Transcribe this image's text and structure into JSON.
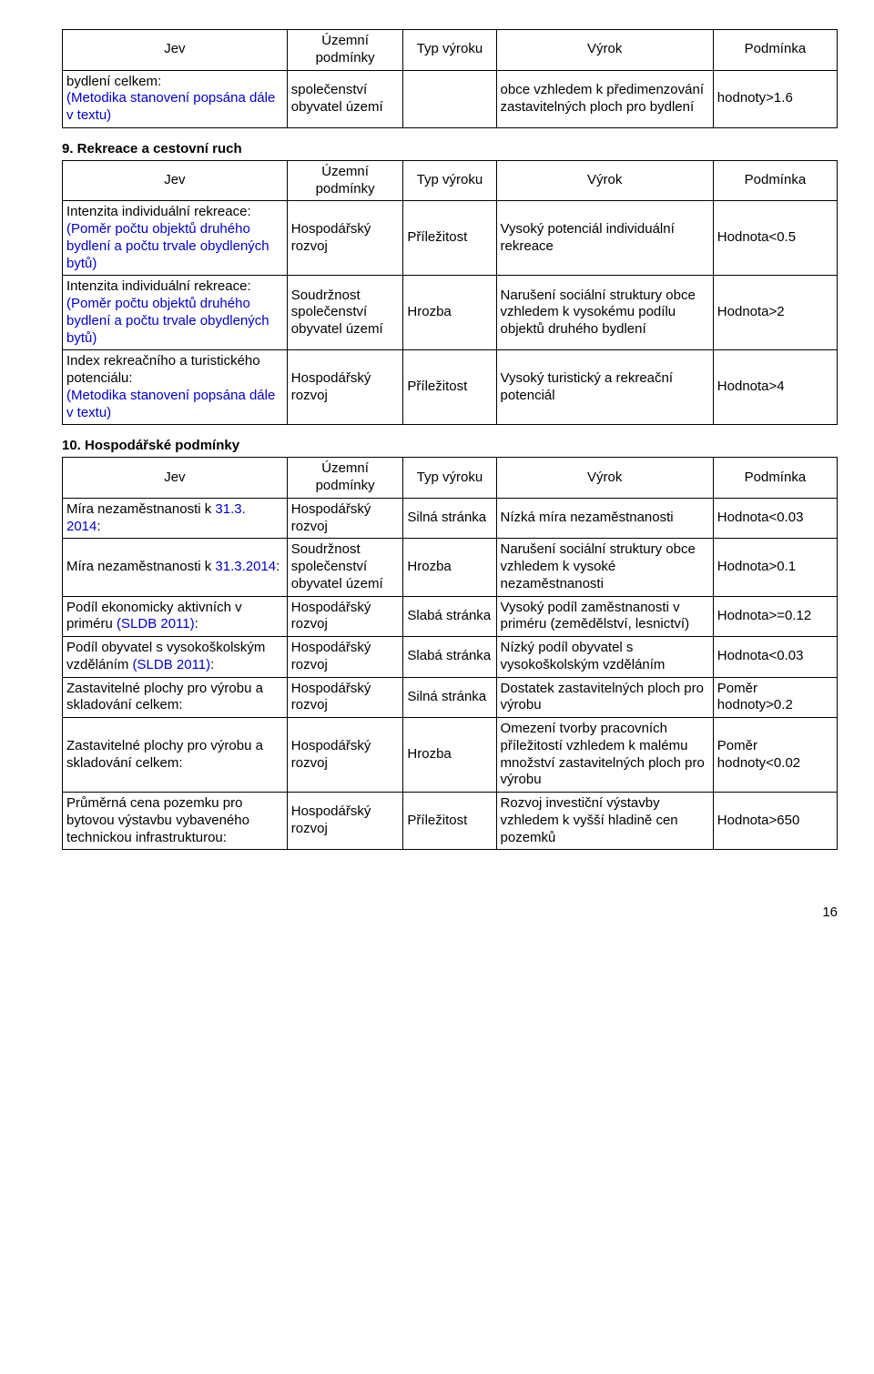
{
  "table1": {
    "headers": [
      "Jev",
      "Územní podmínky",
      "Typ výroku",
      "Výrok",
      "Podmínka"
    ],
    "rows": [
      {
        "jev_part1": "bydlení celkem:",
        "jev_part2": "(Metodika stanovení popsána dále v textu)",
        "uzp": "společenství obyvatel území",
        "typ": "",
        "vyrok": "obce vzhledem k předimenzování zastavitelných ploch pro bydlení",
        "pod": "hodnoty>1.6"
      }
    ]
  },
  "section9_title": "9. Rekreace a cestovní ruch",
  "table2": {
    "headers": [
      "Jev",
      "Územní podmínky",
      "Typ výroku",
      "Výrok",
      "Podmínka"
    ],
    "rows": [
      {
        "jev_a": "Intenzita individuální rekreace:",
        "jev_b": "(Poměr počtu objektů druhého bydlení a počtu trvale obydlených bytů)",
        "uzp": "Hospodářský rozvoj",
        "typ": "Příležitost",
        "vyrok": "Vysoký potenciál individuální rekreace",
        "pod": "Hodnota<0.5"
      },
      {
        "jev_a": "Intenzita individuální rekreace:",
        "jev_b": "(Poměr počtu objektů druhého bydlení a počtu trvale obydlených bytů)",
        "uzp": "Soudržnost společenství obyvatel území",
        "typ": "Hrozba",
        "vyrok": "Narušení sociální struktury obce vzhledem k vysokému podílu objektů druhého bydlení",
        "pod": "Hodnota>2"
      },
      {
        "jev_a": "Index rekreačního a turistického potenciálu:",
        "jev_b": "(Metodika stanovení popsána dále v textu)",
        "uzp": "Hospodářský rozvoj",
        "typ": "Příležitost",
        "vyrok": "Vysoký turistický a rekreační potenciál",
        "pod": "Hodnota>4"
      }
    ]
  },
  "section10_title": "10. Hospodářské podmínky",
  "table3": {
    "headers": [
      "Jev",
      "Územní podmínky",
      "Typ výroku",
      "Výrok",
      "Podmínka"
    ],
    "rows": [
      {
        "jev_a": "Míra nezaměstnanosti k ",
        "jev_b": "31.3. 2014",
        "jev_c": ":",
        "uzp": "Hospodářský rozvoj",
        "typ": "Silná stránka",
        "vyrok": "Nízká míra nezaměstnanosti",
        "pod": "Hodnota<0.03"
      },
      {
        "jev_a": "Míra nezaměstnanosti k ",
        "jev_b": "31.3.2014",
        "jev_c": ":",
        "uzp": "Soudržnost společenství obyvatel území",
        "typ": "Hrozba",
        "vyrok": "Narušení sociální struktury obce vzhledem k vysoké nezaměstnanosti",
        "pod": "Hodnota>0.1"
      },
      {
        "jev_a": "Podíl ekonomicky aktivních v priméru ",
        "jev_b": "(SLDB 2011)",
        "jev_c": ":",
        "uzp": "Hospodářský rozvoj",
        "typ": "Slabá stránka",
        "vyrok": "Vysoký podíl zaměstnanosti v priméru (zemědělství, lesnictví)",
        "pod": "Hodnota>=0.12"
      },
      {
        "jev_a": "Podíl obyvatel s vysokoškolským vzděláním ",
        "jev_b": "(SLDB 2011)",
        "jev_c": ":",
        "uzp": "Hospodářský rozvoj",
        "typ": "Slabá stránka",
        "vyrok": "Nízký podíl obyvatel s vysokoškolským vzděláním",
        "pod": "Hodnota<0.03"
      },
      {
        "jev_a": "Zastavitelné plochy pro výrobu a skladování celkem:",
        "jev_b": "",
        "jev_c": "",
        "uzp": "Hospodářský rozvoj",
        "typ": "Silná stránka",
        "vyrok": "Dostatek zastavitelných ploch pro výrobu",
        "pod": "Poměr hodnoty>0.2"
      },
      {
        "jev_a": "Zastavitelné plochy pro výrobu a skladování celkem:",
        "jev_b": "",
        "jev_c": "",
        "uzp": "Hospodářský rozvoj",
        "typ": "Hrozba",
        "vyrok": "Omezení tvorby pracovních příležitostí vzhledem k malému množství zastavitelných ploch pro výrobu",
        "pod": "Poměr hodnoty<0.02"
      },
      {
        "jev_a": "Průměrná cena pozemku pro bytovou výstavbu vybaveného technickou infrastrukturou:",
        "jev_b": "",
        "jev_c": "",
        "uzp": "Hospodářský rozvoj",
        "typ": "Příležitost",
        "vyrok": "Rozvoj investiční výstavby vzhledem k vyšší hladině cen pozemků",
        "pod": "Hodnota>650"
      }
    ]
  },
  "page_number": "16"
}
